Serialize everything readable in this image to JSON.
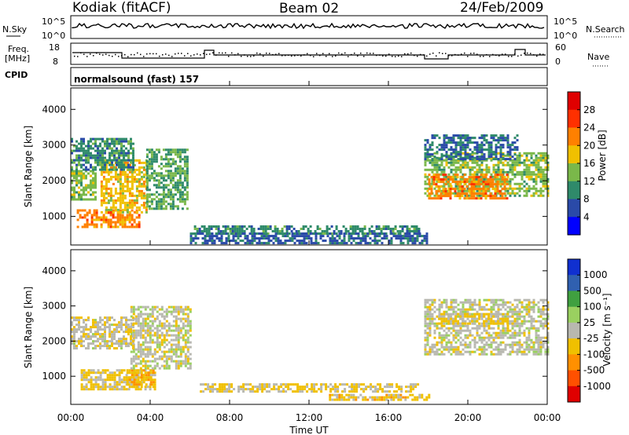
{
  "header": {
    "station": "Kodiak (fitACF)",
    "beam": "Beam 02",
    "date": "24/Feb/2009"
  },
  "panels": {
    "nsky": {
      "label": "N.Sky",
      "right_label": "N.Search",
      "ticks": [
        "10^5",
        "10^0"
      ],
      "right_ticks": [
        "10^5",
        "10^0"
      ]
    },
    "freq": {
      "label_line1": "Freq.",
      "label_line2": "[MHz]",
      "right_label": "Nave",
      "ticks": [
        "18",
        "8"
      ],
      "right_ticks": [
        "60",
        "0"
      ]
    },
    "cpid": {
      "label": "CPID",
      "program": "normalsound (fast) 157"
    }
  },
  "power_panel": {
    "ylabel": "Slant Range [km]",
    "yticks": [
      "4000",
      "3000",
      "2000",
      "1000"
    ],
    "cbar_label": "Power [dB]",
    "cbar_ticks": [
      "28",
      "24",
      "20",
      "16",
      "12",
      "8",
      "4"
    ]
  },
  "velocity_panel": {
    "ylabel": "Slant Range [km]",
    "yticks": [
      "4000",
      "3000",
      "2000",
      "1000"
    ],
    "cbar_label": "Velocity [m s⁻¹]",
    "cbar_ticks": [
      "1000",
      "500",
      "100",
      "25",
      "-25",
      "-100",
      "-500",
      "-1000"
    ]
  },
  "x_axis": {
    "xlabel": "Time UT",
    "ticks": [
      "00:00",
      "04:00",
      "08:00",
      "12:00",
      "16:00",
      "20:00",
      "00:00"
    ]
  },
  "colors": {
    "power_scale": [
      "#0000ff",
      "#2a4aa8",
      "#2f8a6a",
      "#7ab84a",
      "#f0c000",
      "#ff8000",
      "#ff3000",
      "#e00000"
    ],
    "velocity_scale": [
      "#1030d0",
      "#3060b0",
      "#40a040",
      "#9ad060",
      "#b8b8b0",
      "#f0c000",
      "#ff9000",
      "#ff5000",
      "#e00000"
    ]
  },
  "chart_data": [
    {
      "type": "heatmap",
      "title": "Power",
      "xlabel": "Time UT",
      "ylabel": "Slant Range [km]",
      "xlim": [
        0,
        24
      ],
      "ylim": [
        200,
        4600
      ],
      "colorbar": {
        "label": "Power [dB]",
        "range": [
          0,
          32
        ]
      },
      "regions": [
        {
          "t": [
            0.0,
            1.2
          ],
          "r": [
            1500,
            2300
          ],
          "value": 14
        },
        {
          "t": [
            0.3,
            3.5
          ],
          "r": [
            700,
            1200
          ],
          "value": 22
        },
        {
          "t": [
            1.5,
            3.8
          ],
          "r": [
            1100,
            2600
          ],
          "value": 18
        },
        {
          "t": [
            3.8,
            5.9
          ],
          "r": [
            1200,
            2900
          ],
          "value": 12
        },
        {
          "t": [
            0.0,
            3.2
          ],
          "r": [
            2300,
            3200
          ],
          "value": 10
        },
        {
          "t": [
            6.2,
            17.5
          ],
          "r": [
            550,
            750
          ],
          "value": 10
        },
        {
          "t": [
            6.0,
            18.0
          ],
          "r": [
            250,
            550
          ],
          "value": 7
        },
        {
          "t": [
            17.8,
            24.0
          ],
          "r": [
            1600,
            2800
          ],
          "value": 14
        },
        {
          "t": [
            17.8,
            22.5
          ],
          "r": [
            2600,
            3300
          ],
          "value": 8
        },
        {
          "t": [
            18.0,
            22.0
          ],
          "r": [
            1500,
            2200
          ],
          "value": 22
        }
      ]
    },
    {
      "type": "heatmap",
      "title": "Velocity",
      "xlabel": "Time UT",
      "ylabel": "Slant Range [km]",
      "xlim": [
        0,
        24
      ],
      "ylim": [
        200,
        4600
      ],
      "colorbar": {
        "label": "Velocity [m s⁻¹]",
        "range": [
          -1000,
          1000
        ]
      },
      "regions": [
        {
          "t": [
            0.5,
            4.2
          ],
          "r": [
            650,
            1200
          ],
          "value": -150
        },
        {
          "t": [
            2.8,
            4.2
          ],
          "r": [
            700,
            1200
          ],
          "value": -300
        },
        {
          "t": [
            3.0,
            6.0
          ],
          "r": [
            1200,
            3000
          ],
          "value": 0
        },
        {
          "t": [
            0.0,
            3.2
          ],
          "r": [
            1800,
            2700
          ],
          "value": -50
        },
        {
          "t": [
            6.5,
            17.5
          ],
          "r": [
            550,
            800
          ],
          "value": -120
        },
        {
          "t": [
            13.0,
            18.0
          ],
          "r": [
            300,
            500
          ],
          "value": -200
        },
        {
          "t": [
            17.8,
            24.0
          ],
          "r": [
            1600,
            3200
          ],
          "value": 0
        },
        {
          "t": [
            18.5,
            22.0
          ],
          "r": [
            2500,
            2800
          ],
          "value": -150
        }
      ]
    }
  ]
}
